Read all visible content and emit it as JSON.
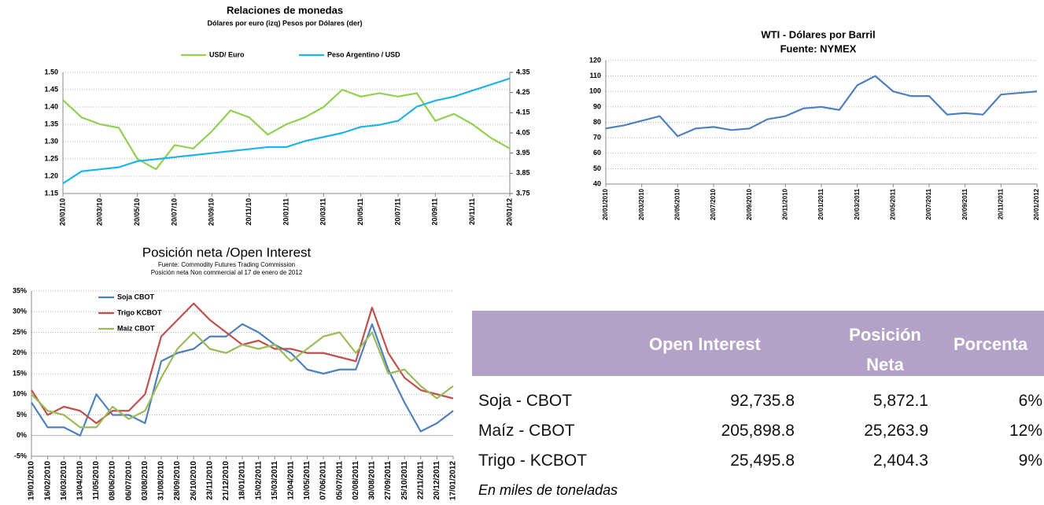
{
  "chart_data": [
    {
      "type": "line",
      "title": "Relaciones de monedas",
      "subtitles": [
        "Dólares por euro (izq) Pesos por Dólares (der)"
      ],
      "categories": [
        "20/01/10",
        null,
        "20/03/10",
        null,
        "20/05/10",
        null,
        "20/07/10",
        null,
        "20/09/10",
        null,
        "20/11/10",
        null,
        "20/01/11",
        null,
        "20/03/11",
        null,
        "20/05/11",
        null,
        "20/07/11",
        null,
        "20/09/11",
        null,
        "20/11/11",
        null,
        "20/01/12"
      ],
      "series": [
        {
          "name": "USD/ Euro",
          "color": "#92d050",
          "values": [
            1.42,
            1.37,
            1.35,
            1.34,
            1.25,
            1.22,
            1.29,
            1.28,
            1.33,
            1.39,
            1.37,
            1.32,
            1.35,
            1.37,
            1.4,
            1.45,
            1.43,
            1.44,
            1.43,
            1.44,
            1.36,
            1.38,
            1.35,
            1.31,
            1.28
          ]
        },
        {
          "name": "Peso Argentino / USD",
          "color": "#1fb4e8",
          "axis": "y2",
          "values": [
            3.8,
            3.86,
            3.87,
            3.88,
            3.91,
            3.92,
            3.93,
            3.94,
            3.95,
            3.96,
            3.97,
            3.98,
            3.98,
            4.01,
            4.03,
            4.05,
            4.08,
            4.09,
            4.11,
            4.18,
            4.21,
            4.23,
            4.26,
            4.29,
            4.32
          ]
        }
      ],
      "ylim": [
        1.15,
        1.5
      ],
      "yticks": [
        1.15,
        {
          "value": 1.2,
          "label": "1.20"
        },
        1.25,
        {
          "value": 1.3,
          "label": "1.30"
        },
        1.35,
        {
          "value": 1.4,
          "label": "1.40"
        },
        1.45,
        {
          "value": 1.5,
          "label": "1.50"
        }
      ],
      "y2lim": [
        3.75,
        4.35
      ],
      "y2ticks": [
        3.75,
        3.85,
        3.95,
        4.05,
        4.15,
        4.25,
        4.35
      ],
      "grid": true,
      "legend": "top"
    },
    {
      "type": "line",
      "title": "WTI - Dólares por Barril",
      "subtitles": [
        "Fuente: NYMEX"
      ],
      "categories": [
        "20/01/2010",
        null,
        "20/03/2010",
        null,
        "20/05/2010",
        null,
        "20/07/2010",
        null,
        "20/09/2010",
        null,
        "20/11/2010",
        null,
        "20/01/2011",
        null,
        "20/03/2011",
        null,
        "20/05/2011",
        null,
        "20/07/2011",
        null,
        "20/09/2011",
        null,
        "20/11/2011",
        null,
        "20/01/2012"
      ],
      "series": [
        {
          "color": "#4f7fbf",
          "values": [
            76,
            78,
            81,
            84,
            71,
            76,
            77,
            75,
            76,
            82,
            84,
            89,
            90,
            88,
            104,
            110,
            100,
            97,
            97,
            85,
            86,
            85,
            98,
            99,
            100
          ]
        }
      ],
      "ylim": [
        40,
        120
      ],
      "yticks": [
        40,
        50,
        60,
        70,
        80,
        90,
        100,
        110,
        120
      ],
      "grid": true
    },
    {
      "type": "line",
      "title": "Posición neta /Open Interest",
      "subtitles": [
        "Fuente: Commodity Futures Trading Commission",
        "Posición neta Non commercial al 17 de enero de 2012"
      ],
      "categories": [
        "19/01/2010",
        "16/02/2010",
        "16/03/2010",
        "13/04/2010",
        "11/05/2010",
        "08/06/2010",
        "06/07/2010",
        "03/08/2010",
        "31/08/2010",
        "28/09/2010",
        "26/10/2010",
        "23/11/2010",
        "21/12/2010",
        "18/01/2011",
        "15/02/2011",
        "15/03/2011",
        "12/04/2011",
        "10/05/2011",
        "07/06/2011",
        "05/07/2011",
        "02/08/2011",
        "30/08/2011",
        "27/09/2011",
        "25/10/2011",
        "22/11/2011",
        "20/12/2011",
        "17/01/2012"
      ],
      "series": [
        {
          "name": "Soja CBOT",
          "color": "#4f81bd",
          "values": [
            8,
            2,
            2,
            0,
            10,
            5,
            5,
            3,
            18,
            20,
            21,
            24,
            24,
            27,
            25,
            22,
            20,
            16,
            15,
            16,
            16,
            27,
            16,
            8,
            1,
            3,
            6
          ]
        },
        {
          "name": "Trigo KCBOT",
          "color": "#c0504d",
          "values": [
            11,
            5,
            7,
            6,
            3,
            6,
            6,
            10,
            24,
            28,
            32,
            28,
            25,
            22,
            23,
            21,
            21,
            20,
            20,
            19,
            18,
            31,
            20,
            14,
            11,
            10,
            9
          ]
        },
        {
          "name": "Maíz CBOT",
          "color": "#9bbb59",
          "values": [
            10,
            6,
            5,
            2,
            2,
            7,
            4,
            6,
            14,
            21,
            25,
            21,
            20,
            22,
            21,
            22,
            18,
            21,
            24,
            25,
            20,
            25,
            15,
            16,
            12,
            9,
            12
          ]
        }
      ],
      "ylim": [
        -5,
        35
      ],
      "yticks": [
        {
          "value": -5,
          "label": "-5%"
        },
        {
          "value": 0,
          "label": "0%"
        },
        {
          "value": 5,
          "label": "5%"
        },
        {
          "value": 10,
          "label": "10%"
        },
        {
          "value": 15,
          "label": "15%"
        },
        {
          "value": 20,
          "label": "20%"
        },
        {
          "value": 25,
          "label": "25%"
        },
        {
          "value": 30,
          "label": "30%"
        },
        {
          "value": 35,
          "label": "35%"
        }
      ],
      "grid": true,
      "legend": "top-left"
    }
  ],
  "table": {
    "header": [
      "Open Interest",
      "Posición Neta",
      "Porcenta"
    ],
    "rows": [
      [
        "Soja - CBOT",
        "92,735.8",
        "5,872.1",
        "6%"
      ],
      [
        "Maíz - CBOT",
        "205,898.8",
        "25,263.9",
        "12%"
      ],
      [
        "Trigo - KCBOT",
        "25,495.8",
        "2,404.3",
        "9%"
      ]
    ],
    "note": "En miles de toneladas"
  }
}
